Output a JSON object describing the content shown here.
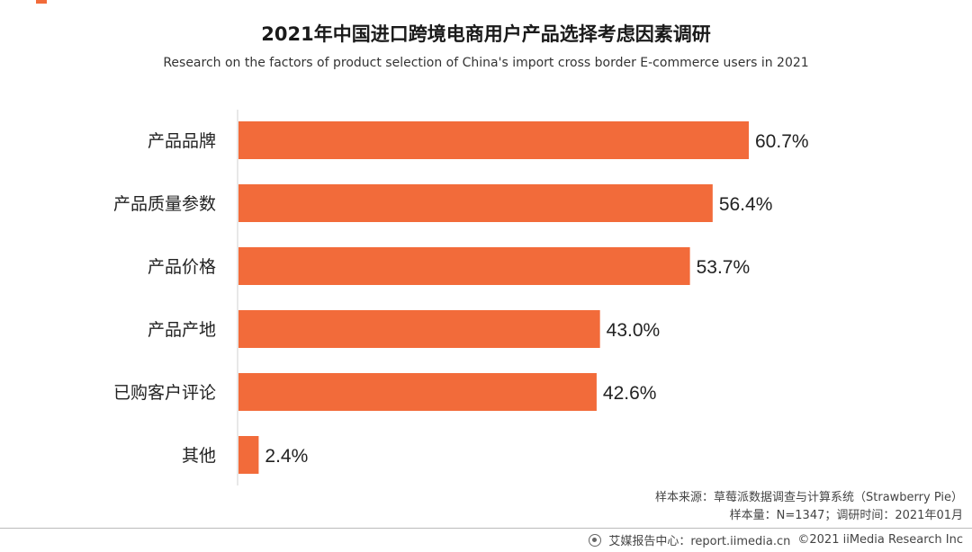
{
  "header": {
    "title": "2021年中国进口跨境电商用户产品选择考虑因素调研",
    "subtitle": "Research on the factors of product selection of China's import cross border E-commerce users in 2021"
  },
  "chart_data": {
    "type": "bar",
    "orientation": "horizontal",
    "title": "2021年中国进口跨境电商用户产品选择考虑因素调研",
    "subtitle": "Research on the factors of product selection of China's import cross border E-commerce users in 2021",
    "categories": [
      "产品品牌",
      "产品质量参数",
      "产品价格",
      "产品产地",
      "已购客户评论",
      "其他"
    ],
    "values": [
      60.7,
      56.4,
      53.7,
      43.0,
      42.6,
      2.4
    ],
    "data_labels": [
      "60.7%",
      "56.4%",
      "53.7%",
      "43.0%",
      "42.6%",
      "2.4%"
    ],
    "unit": "%",
    "xlim": [
      0,
      100
    ],
    "grid": false,
    "legend": "none",
    "bar_color": "#f26b3a"
  },
  "source": {
    "line1": "样本来源：草莓派数据调查与计算系统（Strawberry Pie）",
    "line2": "样本量：N=1347；调研时间：2021年01月"
  },
  "footer": {
    "logo_icon": "iimedia-logo-icon",
    "brand": "艾媒报告中心：report.iimedia.cn",
    "copyright": "©2021  iiMedia Research  Inc"
  }
}
